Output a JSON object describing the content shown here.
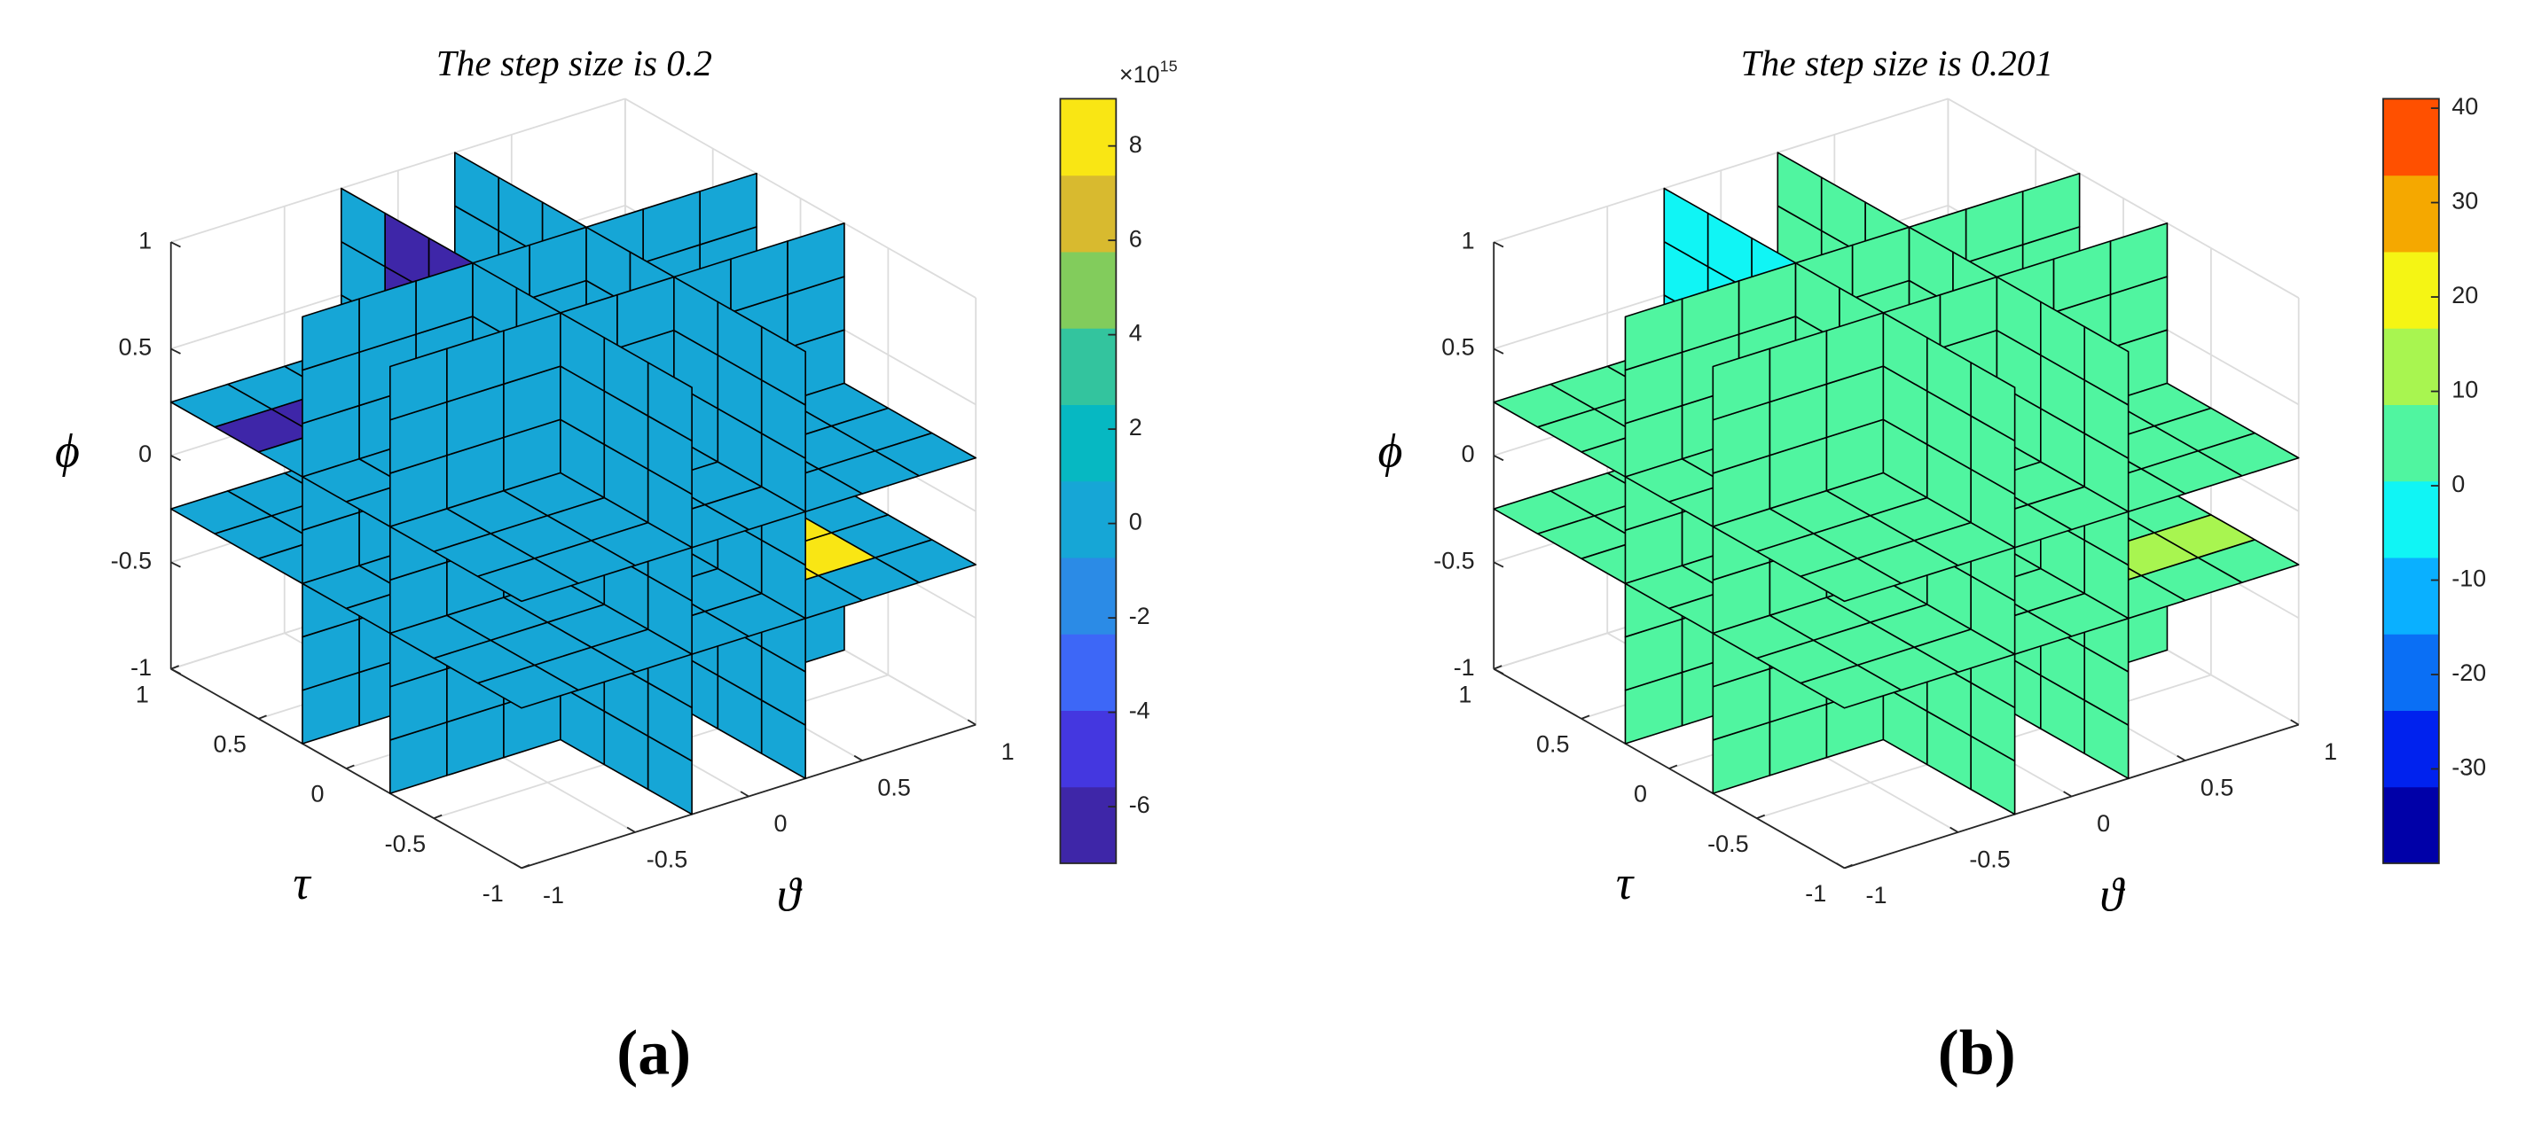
{
  "chart_data": [
    {
      "type": "slice3d",
      "title": "The step size is 0.2",
      "panel_label": "(a)",
      "xlabel": "ϑ",
      "ylabel": "τ",
      "zlabel": "ϕ",
      "xlim": [
        -1,
        1
      ],
      "xticks": [
        -1,
        -0.5,
        0,
        0.5,
        1
      ],
      "ylim": [
        -1,
        1
      ],
      "yticks": [
        -1,
        -0.5,
        0,
        0.5,
        1
      ],
      "zlim": [
        -1,
        1
      ],
      "zticks": [
        -1,
        -0.5,
        0,
        0.5,
        1
      ],
      "slices": {
        "x": [
          -0.25,
          0.25
        ],
        "y": [
          -0.25,
          0.25
        ],
        "z": [
          -0.25,
          0.25
        ]
      },
      "cell_size": 0.25,
      "fill_value": 0,
      "overrides": [
        {
          "slice": "x",
          "at": -0.25,
          "a": [
            0.25,
            0.75
          ],
          "b": [
            0.25,
            1
          ],
          "value": -6
        },
        {
          "slice": "z",
          "at": 0.25,
          "a": [
            -1,
            -0.5
          ],
          "b": [
            0.5,
            0.75
          ],
          "value": -6
        },
        {
          "slice": "z",
          "at": -0.25,
          "a": [
            0.25,
            0.75
          ],
          "b": [
            -0.75,
            -0.25
          ],
          "value": 8
        }
      ],
      "clim": [
        -7.2,
        9
      ],
      "cticks": [
        -6,
        -4,
        -2,
        0,
        2,
        4,
        6,
        8
      ],
      "colorbar_exponent": {
        "base": "×10",
        "power": "15"
      },
      "colormap": [
        "#3e26a8",
        "#4437e0",
        "#3d67f7",
        "#2b8be6",
        "#16a6d6",
        "#06b8c2",
        "#33c49e",
        "#82cc5c",
        "#d8ba2f",
        "#f9e614"
      ]
    },
    {
      "type": "slice3d",
      "title": "The step size is 0.201",
      "panel_label": "(b)",
      "xlabel": "ϑ",
      "ylabel": "τ",
      "zlabel": "ϕ",
      "xlim": [
        -1,
        1
      ],
      "xticks": [
        -1,
        -0.5,
        0,
        0.5,
        1
      ],
      "ylim": [
        -1,
        1
      ],
      "yticks": [
        -1,
        -0.5,
        0,
        0.5,
        1
      ],
      "zlim": [
        -1,
        1
      ],
      "zticks": [
        -1,
        -0.5,
        0,
        0.5,
        1
      ],
      "slices": {
        "x": [
          -0.25,
          0.25
        ],
        "y": [
          -0.25,
          0.25
        ],
        "z": [
          -0.25,
          0.25
        ]
      },
      "cell_size": 0.25,
      "fill_value": 5,
      "overrides": [
        {
          "slice": "y",
          "at": -0.25,
          "a": [
            -0.25,
            0.75
          ],
          "b": [
            -1,
            -0.5
          ],
          "value": -3
        },
        {
          "slice": "x",
          "at": -0.25,
          "a": [
            0.25,
            1
          ],
          "b": [
            0.25,
            1
          ],
          "value": -3
        },
        {
          "slice": "x",
          "at": -0.25,
          "a": [
            0.5,
            0.75
          ],
          "b": [
            -0.25,
            0.5
          ],
          "value": -12
        },
        {
          "slice": "z",
          "at": -0.25,
          "a": [
            0.25,
            1
          ],
          "b": [
            -0.75,
            -0.5
          ],
          "value": 14
        }
      ],
      "clim": [
        -40,
        41
      ],
      "cticks": [
        -30,
        -20,
        -10,
        0,
        10,
        20,
        30,
        40
      ],
      "colormap": [
        "#0000a8",
        "#0022ee",
        "#0a6ff5",
        "#0ab0ff",
        "#10f5f5",
        "#50f5a0",
        "#a8f550",
        "#f5f514",
        "#f5a800",
        "#ff5000"
      ]
    }
  ]
}
